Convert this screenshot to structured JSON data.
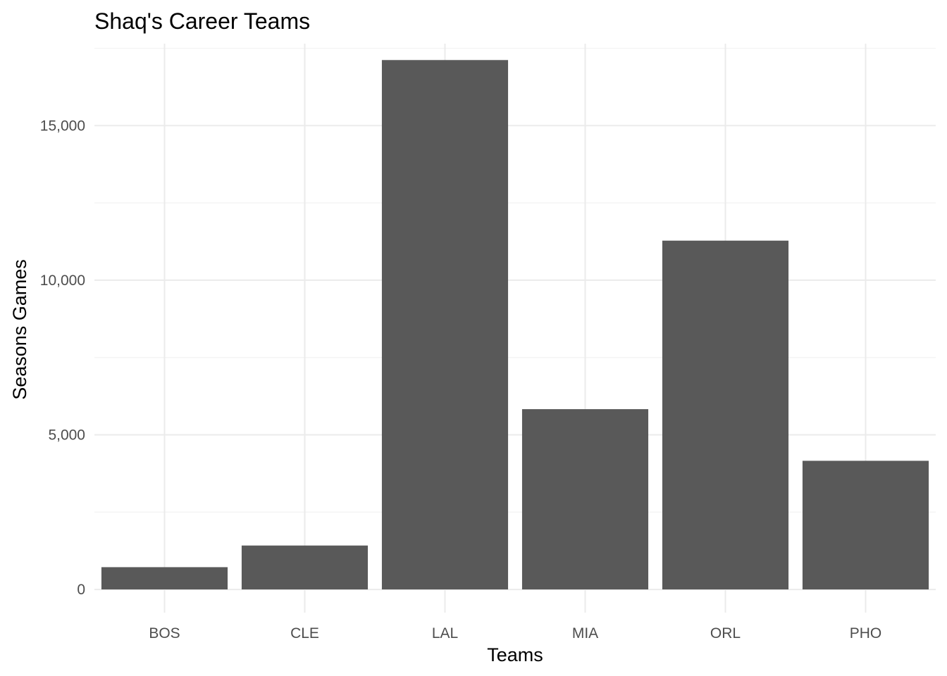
{
  "chart_data": {
    "type": "bar",
    "title": "Shaq's Career Teams",
    "xlabel": "Teams",
    "ylabel": "Seasons Games",
    "categories": [
      "BOS",
      "CLE",
      "LAL",
      "MIA",
      "ORL",
      "PHO"
    ],
    "values": [
      720,
      1420,
      17120,
      5830,
      11280,
      4160
    ],
    "ylim": [
      -750,
      17650
    ],
    "y_ticks": [
      0,
      5000,
      10000,
      15000
    ],
    "y_tick_labels": [
      "0",
      "5,000",
      "10,000",
      "15,000"
    ],
    "y_minor_ticks": [
      2500,
      7500,
      12500,
      17500
    ],
    "bar_color": "#595959",
    "grid": true,
    "legend": "none"
  }
}
